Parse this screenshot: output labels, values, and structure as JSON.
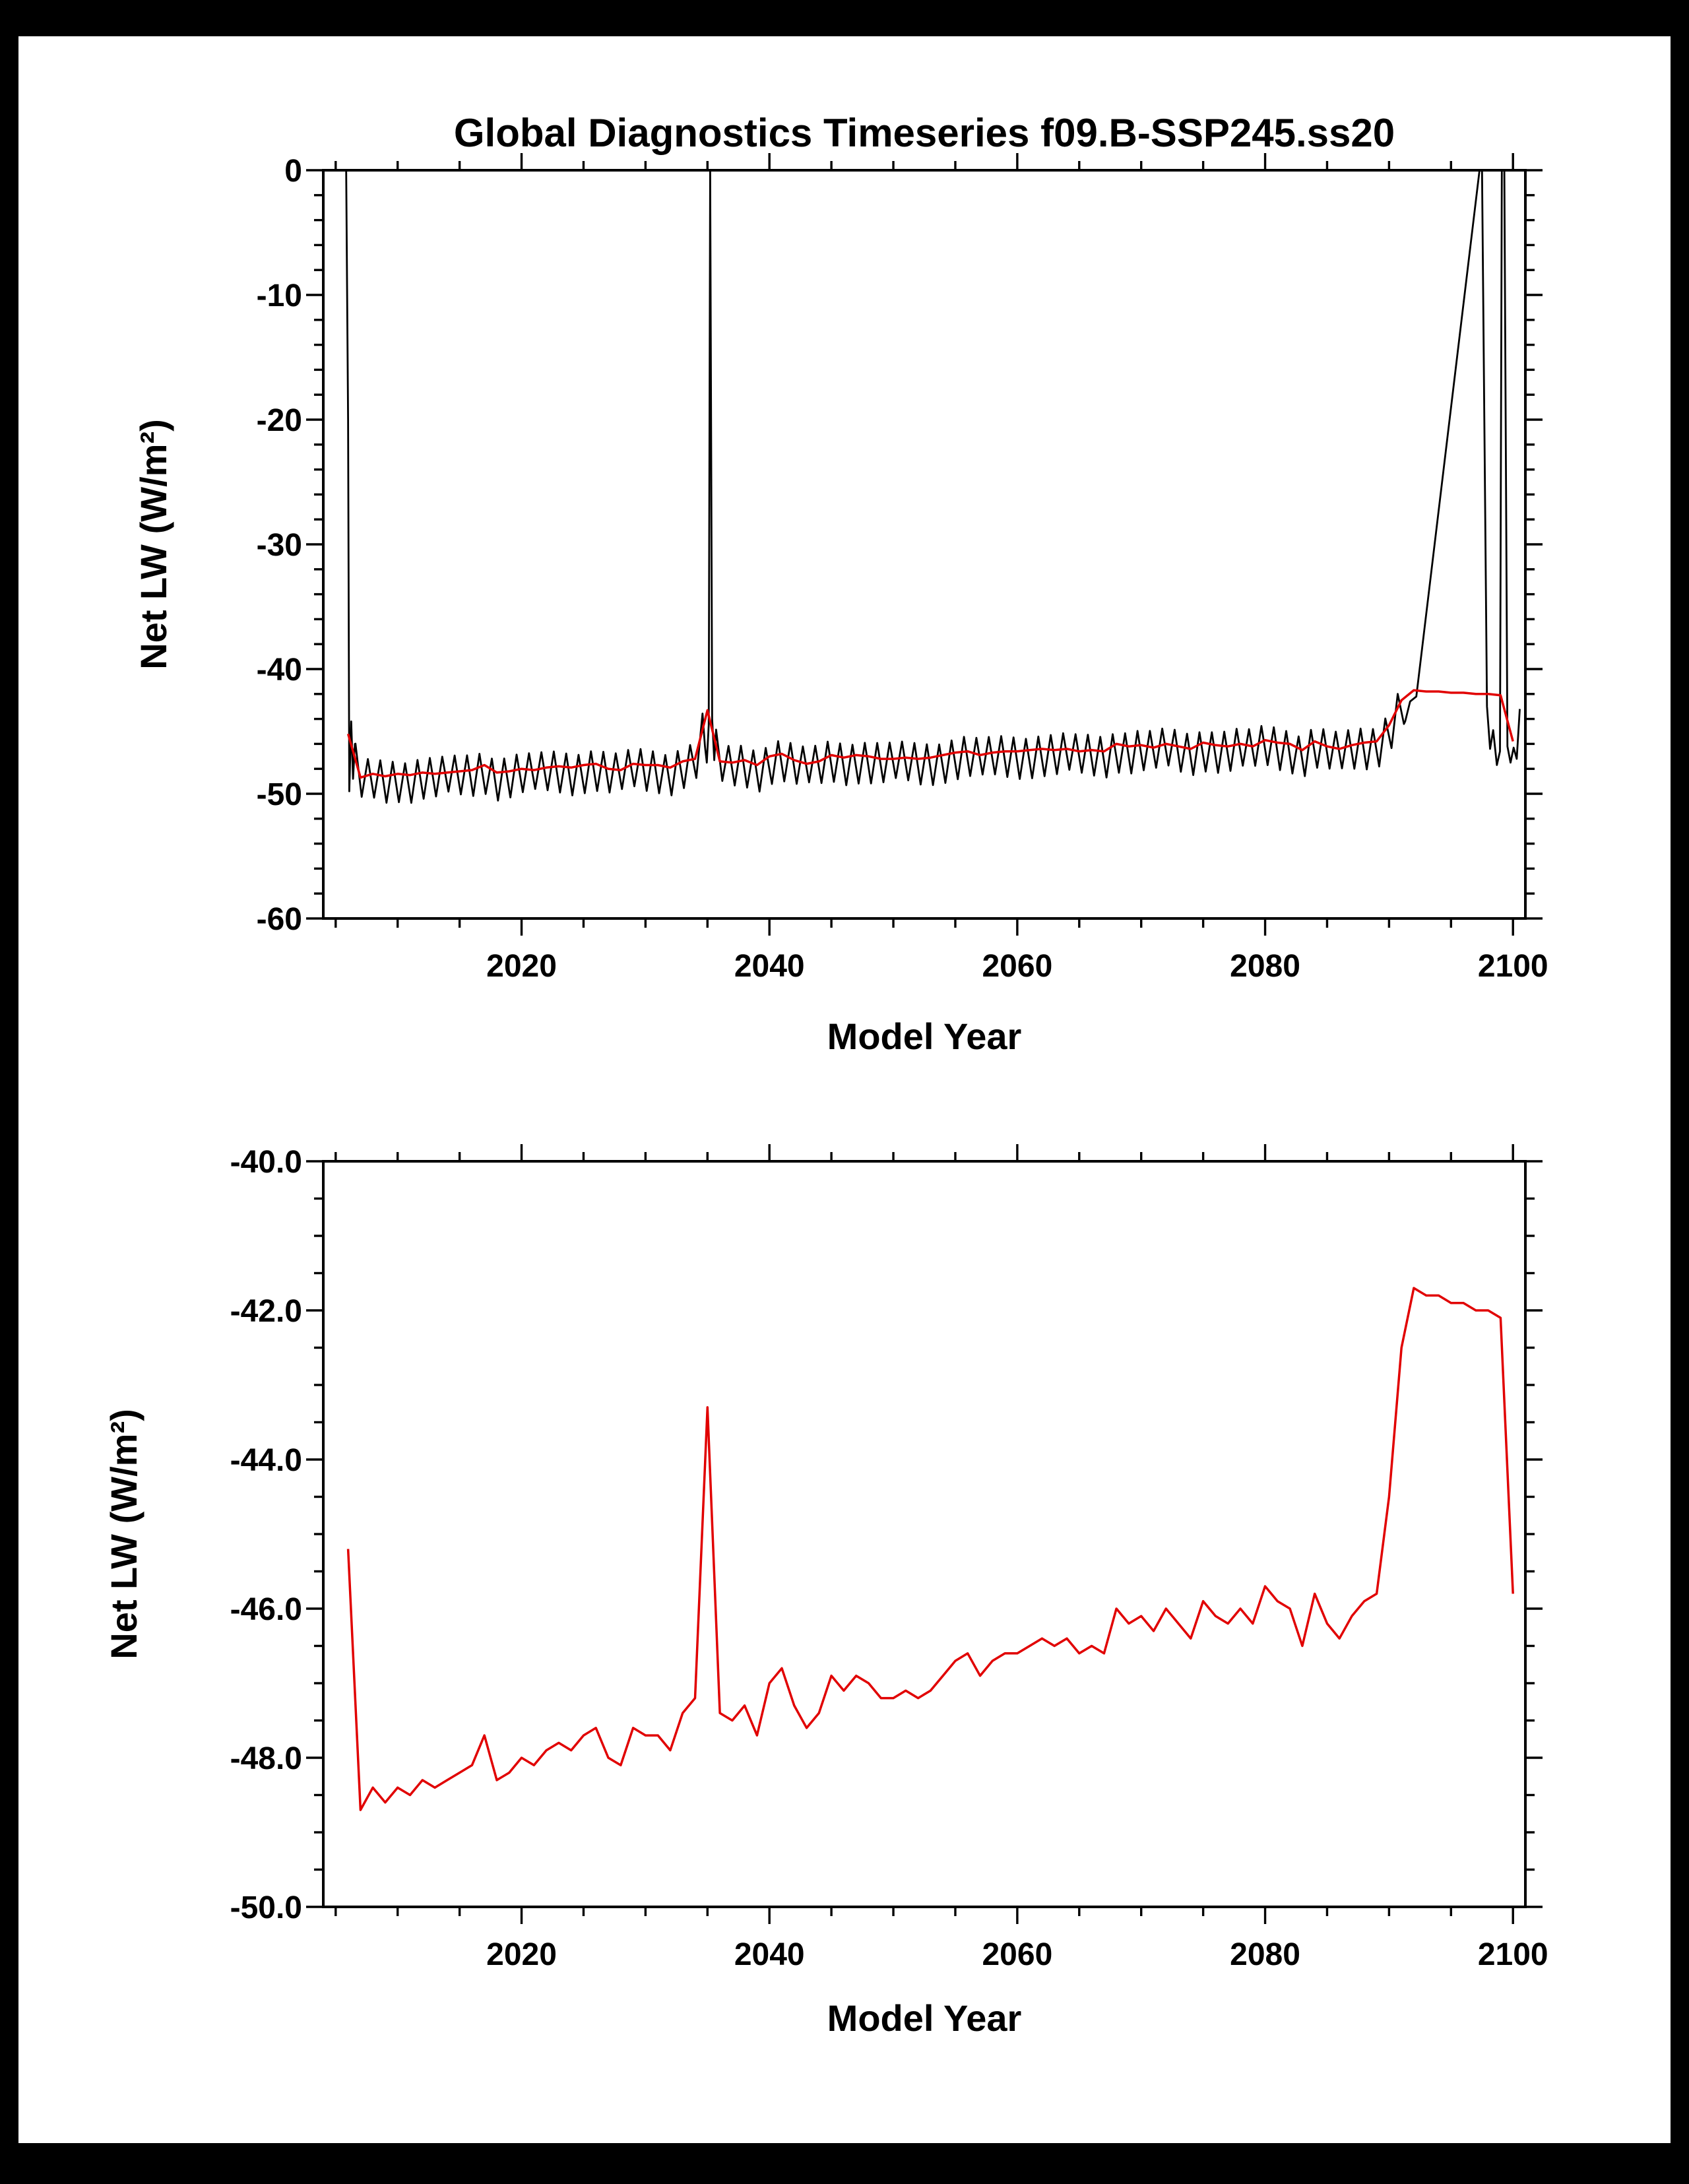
{
  "page": {
    "background": "#000000",
    "plot_background": "#ffffff",
    "line_black": "#000000",
    "line_red": "#e10000"
  },
  "chart_data": [
    {
      "type": "line",
      "title": "Global Diagnostics Timeseries f09.B-SSP245.ss20",
      "xlabel": "Model Year",
      "ylabel": "Net LW (W/m²)",
      "xlim": [
        2004,
        2101
      ],
      "ylim": [
        -60,
        0
      ],
      "grid": false,
      "legend": "none",
      "xticks": {
        "values": [
          2020,
          2040,
          2060,
          2080,
          2100
        ],
        "labels": [
          "2020",
          "2040",
          "2060",
          "2080",
          "2100"
        ],
        "minor_step": 5
      },
      "yticks": {
        "values": [
          0,
          -10,
          -20,
          -30,
          -40,
          -50,
          -60
        ],
        "labels": [
          "0",
          "-10",
          "-20",
          "-30",
          "-40",
          "-50",
          "-60"
        ],
        "minor_step": 2
      },
      "series": [
        {
          "name": "monthly-net-lw",
          "color": "#000000",
          "style": "monthly-zigzag",
          "amplitude_up": 1.1,
          "amplitude_down": 1.9,
          "zigzag_spans": [
            [
              2006.6,
              2034.7
            ],
            [
              2035.7,
              2091.2
            ]
          ],
          "explicit_segments": [
            [
              [
                2005.85,
                0
              ],
              [
                2006.0,
                -20.0
              ],
              [
                2006.1,
                -49.8
              ],
              [
                2006.25,
                -44.2
              ],
              [
                2006.4,
                -48.8
              ],
              [
                2006.55,
                -46.0
              ]
            ],
            [
              [
                2034.8,
                -46.2
              ],
              [
                2034.95,
                -47.5
              ],
              [
                2035.1,
                -44.5
              ],
              [
                2035.22,
                0
              ],
              [
                2035.38,
                -44.0
              ],
              [
                2035.55,
                -47.3
              ]
            ],
            [
              [
                2091.3,
                -44.2
              ],
              [
                2091.7,
                -42.6
              ],
              [
                2092.2,
                -42.2
              ],
              [
                2097.3,
                0
              ],
              [
                2097.5,
                0
              ],
              [
                2097.9,
                -43.0
              ],
              [
                2098.15,
                -46.4
              ],
              [
                2098.4,
                -44.9
              ],
              [
                2098.7,
                -47.7
              ],
              [
                2098.95,
                -46.6
              ],
              [
                2099.1,
                0
              ],
              [
                2099.3,
                0
              ],
              [
                2099.55,
                -46.2
              ],
              [
                2099.8,
                -47.5
              ],
              [
                2100.05,
                -46.3
              ],
              [
                2100.3,
                -47.2
              ],
              [
                2100.55,
                -43.2
              ]
            ]
          ]
        },
        {
          "name": "annual-mean-net-lw",
          "color": "#e10000",
          "style": "annual",
          "x_start": 2006,
          "values": [
            -45.2,
            -48.7,
            -48.4,
            -48.6,
            -48.4,
            -48.5,
            -48.3,
            -48.4,
            -48.3,
            -48.2,
            -48.1,
            -47.7,
            -48.3,
            -48.2,
            -48.0,
            -48.1,
            -47.9,
            -47.8,
            -47.9,
            -47.7,
            -47.6,
            -48.0,
            -48.1,
            -47.6,
            -47.7,
            -47.7,
            -47.9,
            -47.4,
            -47.2,
            -43.3,
            -47.4,
            -47.5,
            -47.3,
            -47.7,
            -47.0,
            -46.8,
            -47.3,
            -47.6,
            -47.4,
            -46.9,
            -47.1,
            -46.9,
            -47.0,
            -47.2,
            -47.2,
            -47.1,
            -47.2,
            -47.1,
            -46.9,
            -46.7,
            -46.6,
            -46.9,
            -46.7,
            -46.6,
            -46.6,
            -46.5,
            -46.4,
            -46.5,
            -46.4,
            -46.6,
            -46.5,
            -46.6,
            -46.0,
            -46.2,
            -46.1,
            -46.3,
            -46.0,
            -46.2,
            -46.4,
            -45.9,
            -46.1,
            -46.2,
            -46.0,
            -46.2,
            -45.7,
            -45.9,
            -46.0,
            -46.5,
            -45.8,
            -46.2,
            -46.4,
            -46.1,
            -45.9,
            -45.8,
            -44.5,
            -42.5,
            -41.7,
            -41.8,
            -41.8,
            -41.9,
            -41.9,
            -42.0,
            -42.0,
            -42.1,
            -45.8
          ]
        }
      ]
    },
    {
      "type": "line",
      "title": "",
      "xlabel": "Model Year",
      "ylabel": "Net LW (W/m²)",
      "xlim": [
        2004,
        2101
      ],
      "ylim": [
        -50,
        -40
      ],
      "grid": false,
      "legend": "none",
      "xticks": {
        "values": [
          2020,
          2040,
          2060,
          2080,
          2100
        ],
        "labels": [
          "2020",
          "2040",
          "2060",
          "2080",
          "2100"
        ],
        "minor_step": 5
      },
      "yticks": {
        "values": [
          -40,
          -42,
          -44,
          -46,
          -48,
          -50
        ],
        "labels": [
          "-40.0",
          "-42.0",
          "-44.0",
          "-46.0",
          "-48.0",
          "-50.0"
        ],
        "minor_step": 0.5
      },
      "series": [
        {
          "name": "annual-mean-net-lw",
          "color": "#e10000",
          "style": "annual",
          "x_start": 2006,
          "values": [
            -45.2,
            -48.7,
            -48.4,
            -48.6,
            -48.4,
            -48.5,
            -48.3,
            -48.4,
            -48.3,
            -48.2,
            -48.1,
            -47.7,
            -48.3,
            -48.2,
            -48.0,
            -48.1,
            -47.9,
            -47.8,
            -47.9,
            -47.7,
            -47.6,
            -48.0,
            -48.1,
            -47.6,
            -47.7,
            -47.7,
            -47.9,
            -47.4,
            -47.2,
            -43.3,
            -47.4,
            -47.5,
            -47.3,
            -47.7,
            -47.0,
            -46.8,
            -47.3,
            -47.6,
            -47.4,
            -46.9,
            -47.1,
            -46.9,
            -47.0,
            -47.2,
            -47.2,
            -47.1,
            -47.2,
            -47.1,
            -46.9,
            -46.7,
            -46.6,
            -46.9,
            -46.7,
            -46.6,
            -46.6,
            -46.5,
            -46.4,
            -46.5,
            -46.4,
            -46.6,
            -46.5,
            -46.6,
            -46.0,
            -46.2,
            -46.1,
            -46.3,
            -46.0,
            -46.2,
            -46.4,
            -45.9,
            -46.1,
            -46.2,
            -46.0,
            -46.2,
            -45.7,
            -45.9,
            -46.0,
            -46.5,
            -45.8,
            -46.2,
            -46.4,
            -46.1,
            -45.9,
            -45.8,
            -44.5,
            -42.5,
            -41.7,
            -41.8,
            -41.8,
            -41.9,
            -41.9,
            -42.0,
            -42.0,
            -42.1,
            -45.8
          ]
        }
      ]
    }
  ]
}
